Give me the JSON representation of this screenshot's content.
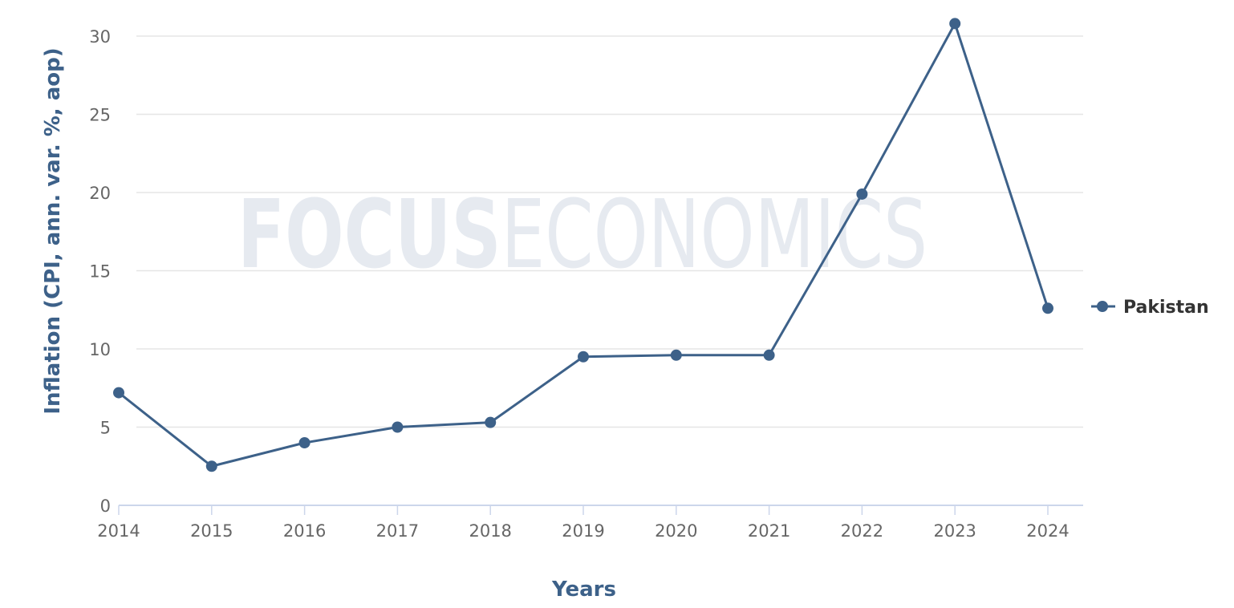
{
  "chart_data": {
    "type": "line",
    "x": [
      "2014",
      "2015",
      "2016",
      "2017",
      "2018",
      "2019",
      "2020",
      "2021",
      "2022",
      "2023",
      "2024"
    ],
    "series": [
      {
        "name": "Pakistan",
        "values": [
          7.2,
          2.5,
          4.0,
          5.0,
          5.3,
          9.5,
          9.6,
          9.6,
          19.9,
          30.8,
          12.6
        ],
        "color": "#3d6189"
      }
    ],
    "xlabel": "Years",
    "ylabel": "Inflation (CPI, ann. var. %, aop)",
    "ylim": [
      0,
      30
    ],
    "yticks": [
      0,
      5,
      10,
      15,
      20,
      25,
      30
    ],
    "grid": true,
    "legend": "right"
  },
  "watermark": {
    "bold": "FOCUS",
    "light": "ECONOMICS"
  },
  "colors": {
    "series": "#3d6189",
    "grid": "#e6e6e6",
    "axis": "#ccd6eb",
    "watermark": "#e6eaf0"
  }
}
